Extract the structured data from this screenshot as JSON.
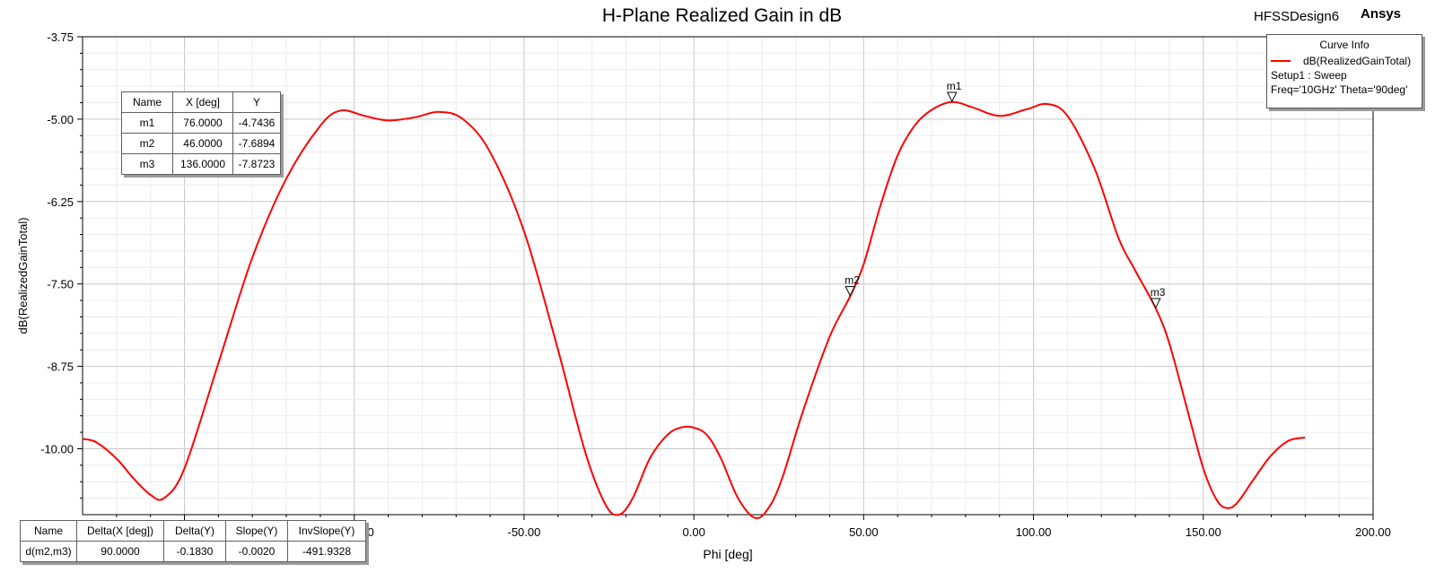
{
  "header": {
    "title": "H-Plane Realized Gain in dB",
    "design": "HFSSDesign6",
    "brand": "Ansys"
  },
  "curve_info": {
    "title": "Curve Info",
    "trace": "dB(RealizedGainTotal)",
    "setup": "Setup1 : Sweep",
    "params": "Freq='10GHz' Theta='90deg'"
  },
  "marker_table": {
    "headers": [
      "Name",
      "X [deg]",
      "Y"
    ],
    "rows": [
      [
        "m1",
        "76.0000",
        "-4.7436"
      ],
      [
        "m2",
        "46.0000",
        "-7.6894"
      ],
      [
        "m3",
        "136.0000",
        "-7.8723"
      ]
    ]
  },
  "delta_table": {
    "headers": [
      "Name",
      "Delta(X [deg])",
      "Delta(Y)",
      "Slope(Y)",
      "InvSlope(Y)"
    ],
    "rows": [
      [
        "d(m2,m3)",
        "90.0000",
        "-0.1830",
        "-0.0020",
        "-491.9328"
      ]
    ]
  },
  "colors": {
    "trace": "#ff0000",
    "grid_major": "#c8c8c8",
    "grid_minor": "#ececec"
  },
  "chart_data": {
    "type": "line",
    "title": "H-Plane Realized Gain in dB",
    "xlabel": "Phi [deg]",
    "ylabel": "dB(RealizedGainTotal)",
    "xlim": [
      -180,
      200
    ],
    "ylim": [
      -11.0,
      -3.75
    ],
    "x_ticks": [
      "-100.00",
      "-50.00",
      "0.00",
      "50.00",
      "100.00",
      "150.00",
      "200.00"
    ],
    "x_tick_values": [
      -100,
      -50,
      0,
      50,
      100,
      150,
      200
    ],
    "y_ticks": [
      "-3.75",
      "-5.00",
      "-6.25",
      "-7.50",
      "-8.75",
      "-10.00"
    ],
    "y_tick_values": [
      -3.75,
      -5.0,
      -6.25,
      -7.5,
      -8.75,
      -10.0
    ],
    "grid": true,
    "legend": "top-right",
    "series": [
      {
        "name": "dB(RealizedGainTotal)",
        "x": [
          -180,
          -176,
          -170,
          -165,
          -160,
          -156,
          -150,
          -140,
          -130,
          -120,
          -110,
          -104,
          -97,
          -90,
          -82,
          -75,
          -68,
          -60,
          -50,
          -40,
          -32,
          -26,
          -22,
          -18,
          -13,
          -8,
          -4,
          0,
          4,
          8,
          13,
          18,
          22,
          26,
          32,
          40,
          46,
          50,
          55,
          60,
          65,
          70,
          76,
          82,
          90,
          98,
          104,
          110,
          118,
          125,
          130,
          136,
          140,
          145,
          150,
          154,
          157,
          160,
          165,
          170,
          175,
          180
        ],
        "y": [
          -9.85,
          -9.9,
          -10.15,
          -10.45,
          -10.7,
          -10.75,
          -10.3,
          -8.7,
          -7.1,
          -5.9,
          -5.1,
          -4.87,
          -4.95,
          -5.02,
          -4.97,
          -4.89,
          -5.0,
          -5.5,
          -6.7,
          -8.5,
          -10.05,
          -10.85,
          -11.0,
          -10.75,
          -10.15,
          -9.8,
          -9.68,
          -9.68,
          -9.8,
          -10.15,
          -10.75,
          -11.05,
          -10.9,
          -10.45,
          -9.45,
          -8.3,
          -7.69,
          -7.2,
          -6.3,
          -5.55,
          -5.1,
          -4.86,
          -4.74,
          -4.82,
          -4.95,
          -4.85,
          -4.77,
          -4.95,
          -5.75,
          -6.8,
          -7.3,
          -7.87,
          -8.4,
          -9.35,
          -10.3,
          -10.78,
          -10.9,
          -10.82,
          -10.45,
          -10.1,
          -9.88,
          -9.83
        ]
      }
    ],
    "markers": [
      {
        "name": "m1",
        "x": 76,
        "y": -4.7436
      },
      {
        "name": "m2",
        "x": 46,
        "y": -7.6894
      },
      {
        "name": "m3",
        "x": 136,
        "y": -7.8723
      }
    ]
  }
}
